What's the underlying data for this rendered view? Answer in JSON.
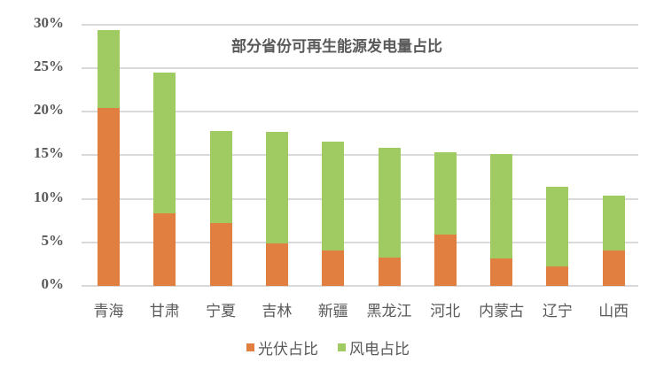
{
  "chart_data": {
    "type": "bar",
    "stacked": true,
    "title": "部分省份可再生能源发电量占比",
    "categories": [
      "青海",
      "甘肃",
      "宁夏",
      "吉林",
      "新疆",
      "黑龙江",
      "河北",
      "内蒙古",
      "辽宁",
      "山西"
    ],
    "series": [
      {
        "name": "光伏占比",
        "color": "#E07F40",
        "values": [
          20.4,
          8.3,
          7.2,
          4.9,
          4.1,
          3.2,
          5.9,
          3.1,
          2.2,
          4.1
        ]
      },
      {
        "name": "风电占比",
        "color": "#A0CB62",
        "values": [
          8.9,
          16.2,
          10.6,
          12.8,
          12.4,
          12.6,
          9.4,
          12.0,
          9.2,
          6.3
        ]
      }
    ],
    "totals": [
      29.3,
      24.5,
      17.8,
      17.7,
      16.5,
      15.8,
      15.3,
      15.1,
      11.4,
      10.4
    ],
    "ylim": [
      0,
      30
    ],
    "yticks": [
      "0%",
      "5%",
      "10%",
      "15%",
      "20%",
      "25%",
      "30%"
    ],
    "xlabel": "",
    "ylabel": "",
    "grid": true,
    "legend_position": "bottom"
  }
}
